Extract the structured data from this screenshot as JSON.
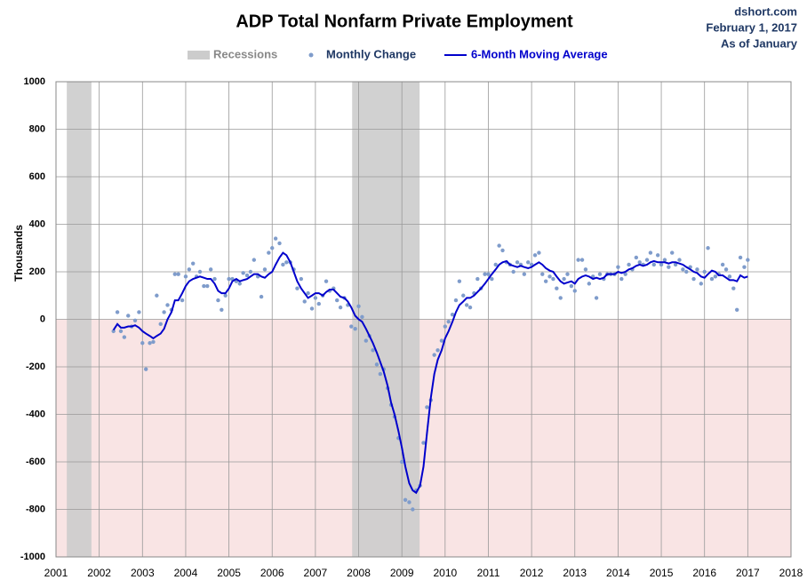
{
  "chart_data": {
    "type": "line",
    "title": "ADP Total Nonfarm Private Employment",
    "source_lines": [
      "dshort.com",
      "February 1, 2017",
      "As of January"
    ],
    "ylabel": "Thousands",
    "xlim": [
      2001,
      2018
    ],
    "xticks": [
      2001,
      2002,
      2003,
      2004,
      2005,
      2006,
      2007,
      2008,
      2009,
      2010,
      2011,
      2012,
      2013,
      2014,
      2015,
      2016,
      2017,
      2018
    ],
    "ylim": [
      -1000,
      1000
    ],
    "yticks": [
      1000,
      800,
      600,
      400,
      200,
      0,
      -200,
      -400,
      -600,
      -800,
      -1000
    ],
    "grid": true,
    "negative_shade_color": "#f9e4e4",
    "recessions": {
      "name": "Recessions",
      "color": "#cccccc",
      "ranges": [
        [
          2001.25,
          2001.82
        ],
        [
          2007.85,
          2009.41
        ]
      ]
    },
    "x": [
      2002.33,
      2002.42,
      2002.5,
      2002.58,
      2002.67,
      2002.75,
      2002.83,
      2002.92,
      2003,
      2003.08,
      2003.17,
      2003.25,
      2003.33,
      2003.42,
      2003.5,
      2003.58,
      2003.67,
      2003.75,
      2003.83,
      2003.92,
      2004,
      2004.08,
      2004.17,
      2004.25,
      2004.33,
      2004.42,
      2004.5,
      2004.58,
      2004.67,
      2004.75,
      2004.83,
      2004.92,
      2005,
      2005.08,
      2005.17,
      2005.25,
      2005.33,
      2005.42,
      2005.5,
      2005.58,
      2005.67,
      2005.75,
      2005.83,
      2005.92,
      2006,
      2006.08,
      2006.17,
      2006.25,
      2006.33,
      2006.42,
      2006.5,
      2006.58,
      2006.67,
      2006.75,
      2006.83,
      2006.92,
      2007,
      2007.08,
      2007.17,
      2007.25,
      2007.33,
      2007.42,
      2007.5,
      2007.58,
      2007.67,
      2007.75,
      2007.83,
      2007.92,
      2008,
      2008.08,
      2008.17,
      2008.25,
      2008.33,
      2008.42,
      2008.5,
      2008.58,
      2008.67,
      2008.75,
      2008.83,
      2008.92,
      2009,
      2009.08,
      2009.17,
      2009.25,
      2009.33,
      2009.42,
      2009.5,
      2009.58,
      2009.67,
      2009.75,
      2009.83,
      2009.92,
      2010,
      2010.08,
      2010.17,
      2010.25,
      2010.33,
      2010.42,
      2010.5,
      2010.58,
      2010.67,
      2010.75,
      2010.83,
      2010.92,
      2011,
      2011.08,
      2011.17,
      2011.25,
      2011.33,
      2011.42,
      2011.5,
      2011.58,
      2011.67,
      2011.75,
      2011.83,
      2011.92,
      2012,
      2012.08,
      2012.17,
      2012.25,
      2012.33,
      2012.42,
      2012.5,
      2012.58,
      2012.67,
      2012.75,
      2012.83,
      2012.92,
      2013,
      2013.08,
      2013.17,
      2013.25,
      2013.33,
      2013.42,
      2013.5,
      2013.58,
      2013.67,
      2013.75,
      2013.83,
      2013.92,
      2014,
      2014.08,
      2014.17,
      2014.25,
      2014.33,
      2014.42,
      2014.5,
      2014.58,
      2014.67,
      2014.75,
      2014.83,
      2014.92,
      2015,
      2015.08,
      2015.17,
      2015.25,
      2015.33,
      2015.42,
      2015.5,
      2015.58,
      2015.67,
      2015.75,
      2015.83,
      2015.92,
      2016,
      2016.08,
      2016.17,
      2016.25,
      2016.33,
      2016.42,
      2016.5,
      2016.58,
      2016.67,
      2016.75,
      2016.83,
      2016.92,
      2017
    ],
    "series": [
      {
        "name": "Monthly Change",
        "type": "scatter",
        "color": "#7f9ccb",
        "values": [
          -50,
          30,
          -50,
          -75,
          15,
          -30,
          -5,
          30,
          -100,
          -210,
          -100,
          -95,
          100,
          -20,
          30,
          60,
          40,
          190,
          190,
          80,
          180,
          210,
          235,
          180,
          200,
          140,
          140,
          210,
          170,
          80,
          40,
          100,
          170,
          170,
          160,
          150,
          195,
          185,
          200,
          250,
          180,
          95,
          210,
          280,
          300,
          340,
          320,
          230,
          240,
          240,
          210,
          130,
          170,
          75,
          110,
          45,
          90,
          65,
          100,
          160,
          120,
          130,
          80,
          50,
          90,
          60,
          -30,
          -40,
          55,
          10,
          -90,
          -70,
          -130,
          -190,
          -230,
          -210,
          -290,
          -360,
          -410,
          -500,
          -600,
          -760,
          -770,
          -800,
          -720,
          -700,
          -520,
          -370,
          -340,
          -150,
          -130,
          -90,
          -30,
          -10,
          20,
          80,
          160,
          100,
          60,
          50,
          110,
          170,
          130,
          190,
          190,
          170,
          230,
          310,
          290,
          240,
          230,
          200,
          240,
          230,
          190,
          240,
          230,
          270,
          280,
          190,
          160,
          180,
          170,
          130,
          90,
          170,
          190,
          140,
          120,
          250,
          250,
          210,
          150,
          180,
          90,
          190,
          170,
          190,
          190,
          190,
          220,
          170,
          190,
          230,
          210,
          260,
          240,
          230,
          250,
          280,
          230,
          270,
          230,
          250,
          220,
          280,
          230,
          250,
          210,
          200,
          220,
          170,
          210,
          150,
          200,
          300,
          170,
          180,
          190,
          230,
          210,
          180,
          130,
          40,
          260,
          220,
          250
        ]
      },
      {
        "name": "6-Month Moving Average",
        "type": "line",
        "color": "#0000cc",
        "values": [
          -45,
          -20,
          -35,
          -35,
          -30,
          -30,
          -25,
          -35,
          -50,
          -60,
          -70,
          -80,
          -70,
          -60,
          -40,
          0,
          30,
          80,
          80,
          110,
          140,
          160,
          170,
          175,
          180,
          175,
          170,
          170,
          150,
          120,
          110,
          110,
          130,
          160,
          170,
          160,
          165,
          170,
          180,
          190,
          190,
          180,
          175,
          190,
          200,
          230,
          260,
          280,
          270,
          240,
          200,
          160,
          130,
          110,
          90,
          100,
          110,
          110,
          100,
          115,
          125,
          125,
          110,
          95,
          90,
          75,
          50,
          15,
          0,
          -10,
          -40,
          -70,
          -100,
          -140,
          -180,
          -220,
          -280,
          -350,
          -400,
          -470,
          -540,
          -620,
          -690,
          -720,
          -730,
          -700,
          -620,
          -480,
          -330,
          -230,
          -170,
          -130,
          -80,
          -50,
          -10,
          30,
          60,
          75,
          90,
          90,
          100,
          115,
          130,
          150,
          170,
          190,
          210,
          230,
          240,
          245,
          230,
          225,
          220,
          225,
          220,
          215,
          220,
          230,
          240,
          230,
          215,
          205,
          200,
          180,
          160,
          150,
          155,
          160,
          150,
          170,
          180,
          185,
          180,
          170,
          175,
          170,
          175,
          190,
          190,
          190,
          200,
          195,
          200,
          210,
          215,
          225,
          230,
          225,
          230,
          240,
          245,
          240,
          240,
          240,
          235,
          240,
          240,
          235,
          230,
          220,
          210,
          200,
          195,
          180,
          175,
          190,
          205,
          200,
          185,
          185,
          175,
          165,
          165,
          160,
          185,
          175,
          180
        ]
      }
    ]
  }
}
